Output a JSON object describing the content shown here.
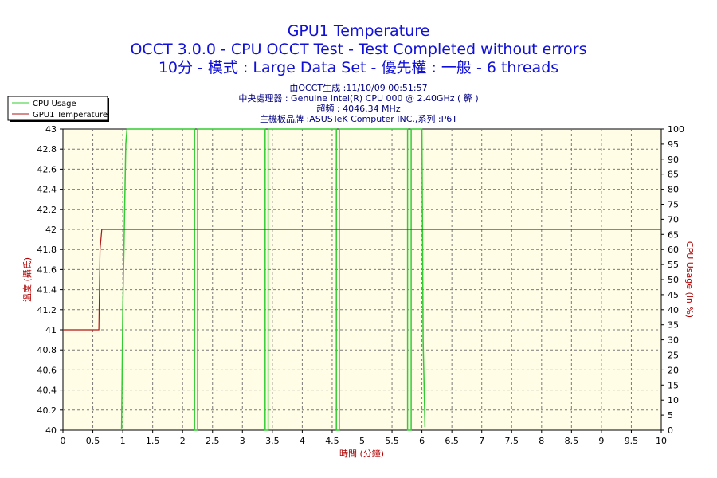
{
  "header": {
    "title": "GPU1 Temperature",
    "line2": "OCCT 3.0.0 - CPU OCCT Test - Test Completed without errors",
    "line3": "10分 - 模式 : Large Data Set - 優先權 : 一般 - 6 threads",
    "info": [
      "由OCCT生成 :11/10/09 00:51:57",
      "中央處理器 : Genuine Intel(R) CPU 000 @ 2.40GHz (   簳   )",
      "超頻 : 4046.34 MHz",
      "主機板品牌 :ASUSTeK Computer INC.,系列 :P6T"
    ]
  },
  "colors": {
    "title": "#1010d8",
    "info": "#000080",
    "plot_bg": "#fffde6",
    "grid": "#7a7a7a",
    "cpu_usage": "#33cc33",
    "gpu_temp": "#b01414",
    "axis_label": "#b00000"
  },
  "chart_data": {
    "type": "line",
    "xlabel": "時間 (分鐘)",
    "ylabel_left": "溫度 (攝氏)",
    "ylabel_right": "CPU Usage (in %)",
    "xlim": [
      0,
      10
    ],
    "ylim_left": [
      40,
      43
    ],
    "ylim_right": [
      0,
      100
    ],
    "x_ticks": [
      "0",
      "0.5",
      "1",
      "1.5",
      "2",
      "2.5",
      "3",
      "3.5",
      "4",
      "4.5",
      "5",
      "5.5",
      "6",
      "6.5",
      "7",
      "7.5",
      "8",
      "8.5",
      "9",
      "9.5",
      "10"
    ],
    "y_left_ticks": [
      "40",
      "40.2",
      "40.4",
      "40.6",
      "40.8",
      "41",
      "41.2",
      "41.4",
      "41.6",
      "41.8",
      "42",
      "42.2",
      "42.4",
      "42.6",
      "42.8",
      "43"
    ],
    "y_right_ticks": [
      "0",
      "5",
      "10",
      "15",
      "20",
      "25",
      "30",
      "35",
      "40",
      "45",
      "50",
      "55",
      "60",
      "65",
      "70",
      "75",
      "80",
      "85",
      "90",
      "95",
      "100"
    ],
    "grid": true,
    "legend_position": "top-left",
    "series": [
      {
        "name": "CPU Usage",
        "axis": "right",
        "points": [
          [
            0.98,
            0
          ],
          [
            1.0,
            40
          ],
          [
            1.02,
            60
          ],
          [
            1.05,
            95
          ],
          [
            1.07,
            100
          ],
          [
            2.2,
            100
          ],
          [
            2.2,
            0
          ],
          [
            2.25,
            0
          ],
          [
            2.25,
            100
          ],
          [
            3.38,
            100
          ],
          [
            3.38,
            0
          ],
          [
            3.43,
            0
          ],
          [
            3.43,
            100
          ],
          [
            4.57,
            100
          ],
          [
            4.57,
            0
          ],
          [
            4.62,
            0
          ],
          [
            4.62,
            100
          ],
          [
            5.76,
            100
          ],
          [
            5.76,
            0
          ],
          [
            5.82,
            0
          ],
          [
            5.82,
            100
          ],
          [
            6.0,
            100
          ],
          [
            6.02,
            30
          ],
          [
            6.05,
            1
          ]
        ]
      },
      {
        "name": "GPU1 Temperature",
        "axis": "left",
        "points": [
          [
            0.0,
            41.0
          ],
          [
            0.6,
            41.0
          ],
          [
            0.62,
            41.8
          ],
          [
            0.65,
            42.0
          ],
          [
            10.0,
            42.0
          ]
        ]
      }
    ]
  }
}
